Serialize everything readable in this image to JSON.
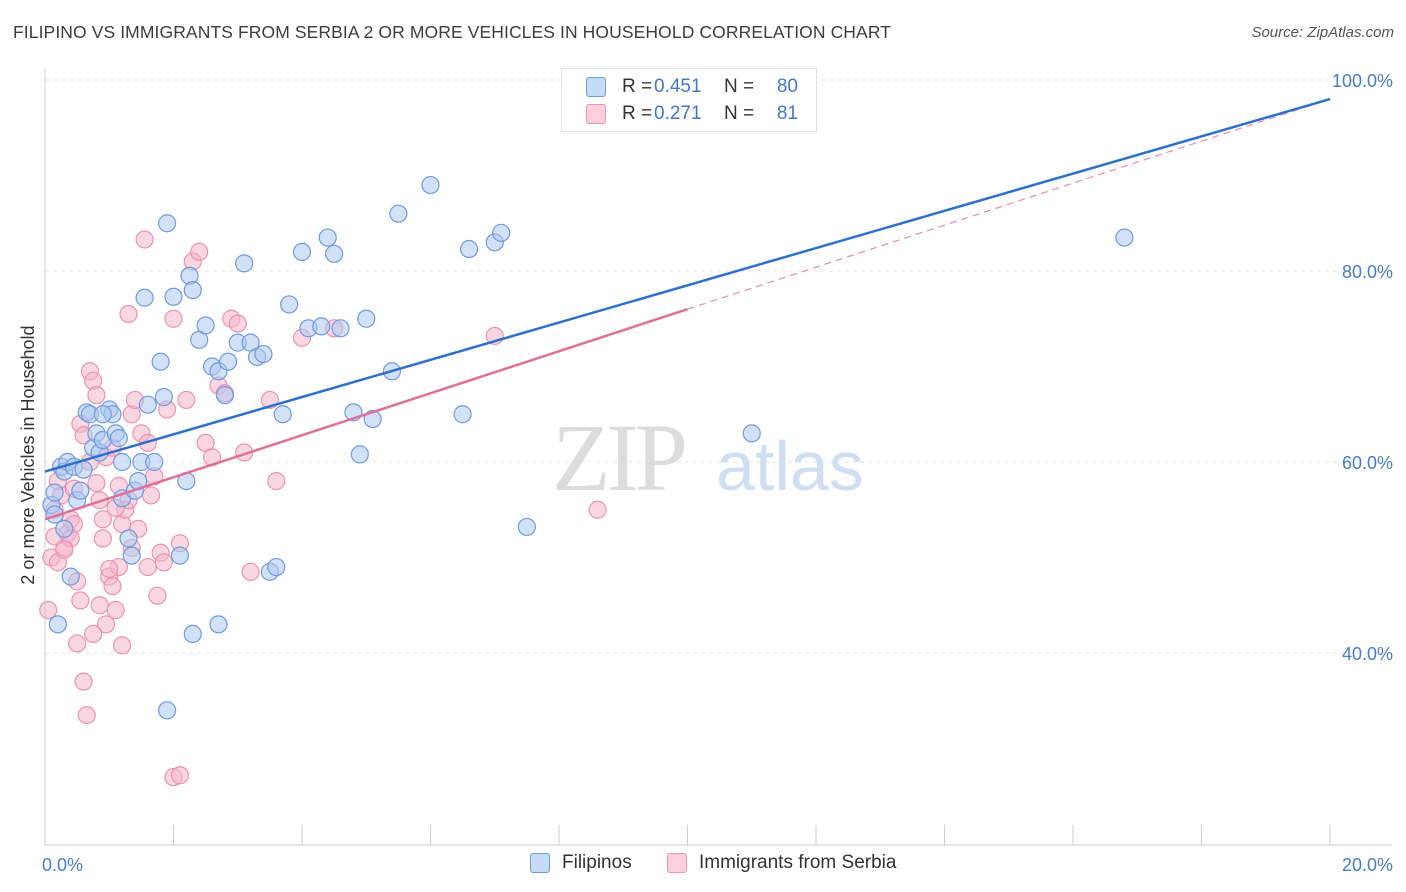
{
  "title": "FILIPINO VS IMMIGRANTS FROM SERBIA 2 OR MORE VEHICLES IN HOUSEHOLD CORRELATION CHART",
  "source": "Source: ZipAtlas.com",
  "watermark": {
    "zip": "ZIP",
    "atlas": "atlas"
  },
  "colors": {
    "blue": "#4477cc",
    "blue_fill": "#aec9ef",
    "blue_line": "#2f6fce",
    "pink": "#e05a8a",
    "pink_fill": "#f4b6cb",
    "pink_line": "#e0709a",
    "axis_label": "#4a7ccc",
    "grid": "#e6e6e6"
  },
  "legend": {
    "rows": [
      {
        "r_label": "R =",
        "r_value": "0.451",
        "n_label": "N =",
        "n_value": "80"
      },
      {
        "r_label": "R =",
        "r_value": "0.271",
        "n_label": "N =",
        "n_value": "81"
      }
    ]
  },
  "bottom_legend": [
    "Filipinos",
    "Immigrants from Serbia"
  ],
  "chart_data": {
    "type": "scatter",
    "title": "FILIPINO VS IMMIGRANTS FROM SERBIA 2 OR MORE VEHICLES IN HOUSEHOLD CORRELATION CHART",
    "xlabel": "",
    "ylabel": "2 or more Vehicles in Household",
    "xlim": [
      0,
      20
    ],
    "ylim": [
      20,
      100
    ],
    "x_tick_labels": [
      "0.0%",
      "20.0%"
    ],
    "y_ticks": [
      40,
      60,
      80,
      100
    ],
    "y_tick_labels": [
      "40.0%",
      "60.0%",
      "80.0%",
      "100.0%"
    ],
    "grid": true,
    "legend_position": "top-center",
    "series": [
      {
        "name": "Filipinos",
        "color": "#4477cc",
        "trend": {
          "x": [
            0,
            20
          ],
          "y": [
            59.0,
            98.0
          ],
          "style": "solid"
        },
        "points": [
          [
            0.1,
            55.5
          ],
          [
            0.15,
            54.5
          ],
          [
            0.2,
            43.0
          ],
          [
            0.25,
            59.5
          ],
          [
            0.3,
            59.0
          ],
          [
            0.35,
            60.0
          ],
          [
            0.4,
            48.0
          ],
          [
            0.45,
            59.5
          ],
          [
            0.5,
            56.0
          ],
          [
            0.55,
            57.0
          ],
          [
            0.6,
            59.2
          ],
          [
            0.65,
            65.2
          ],
          [
            0.7,
            65.0
          ],
          [
            0.75,
            61.5
          ],
          [
            0.8,
            63.0
          ],
          [
            0.85,
            61.0
          ],
          [
            0.9,
            62.3
          ],
          [
            1.0,
            65.5
          ],
          [
            1.05,
            65.0
          ],
          [
            1.1,
            63.0
          ],
          [
            1.15,
            62.5
          ],
          [
            1.2,
            56.2
          ],
          [
            1.3,
            52.0
          ],
          [
            1.35,
            50.2
          ],
          [
            1.4,
            57.0
          ],
          [
            1.45,
            58.0
          ],
          [
            1.5,
            60.0
          ],
          [
            1.55,
            77.2
          ],
          [
            1.6,
            66.0
          ],
          [
            1.7,
            60.0
          ],
          [
            1.8,
            70.5
          ],
          [
            1.85,
            66.8
          ],
          [
            1.9,
            85.0
          ],
          [
            2.0,
            77.3
          ],
          [
            2.1,
            50.2
          ],
          [
            2.2,
            58.0
          ],
          [
            2.25,
            79.5
          ],
          [
            2.3,
            78.0
          ],
          [
            2.4,
            72.8
          ],
          [
            2.5,
            74.3
          ],
          [
            2.6,
            70.0
          ],
          [
            2.7,
            69.5
          ],
          [
            2.8,
            67.0
          ],
          [
            2.85,
            70.5
          ],
          [
            3.0,
            72.5
          ],
          [
            3.1,
            80.8
          ],
          [
            3.2,
            72.5
          ],
          [
            3.3,
            71.0
          ],
          [
            3.4,
            71.3
          ],
          [
            3.5,
            48.5
          ],
          [
            3.6,
            49.0
          ],
          [
            3.7,
            65.0
          ],
          [
            3.8,
            76.5
          ],
          [
            4.0,
            82.0
          ],
          [
            4.1,
            74.0
          ],
          [
            4.3,
            74.2
          ],
          [
            4.4,
            83.5
          ],
          [
            4.5,
            81.8
          ],
          [
            4.6,
            74.0
          ],
          [
            4.8,
            65.2
          ],
          [
            4.9,
            60.8
          ],
          [
            5.0,
            75.0
          ],
          [
            5.1,
            64.5
          ],
          [
            5.4,
            69.5
          ],
          [
            5.5,
            86.0
          ],
          [
            6.0,
            89.0
          ],
          [
            6.5,
            65.0
          ],
          [
            6.6,
            82.3
          ],
          [
            7.0,
            83.0
          ],
          [
            7.1,
            84.0
          ],
          [
            7.5,
            53.2
          ],
          [
            11.0,
            63.0
          ],
          [
            16.8,
            83.5
          ],
          [
            1.9,
            34.0
          ],
          [
            2.3,
            42.0
          ],
          [
            2.7,
            43.0
          ],
          [
            1.2,
            60.0
          ],
          [
            0.9,
            65.0
          ],
          [
            0.3,
            53.0
          ],
          [
            0.15,
            56.8
          ]
        ]
      },
      {
        "name": "Immigrants from Serbia",
        "color": "#e05a8a",
        "trend": {
          "x": [
            0,
            10
          ],
          "y": [
            54.0,
            76.0
          ],
          "style": "solid",
          "dashed_extension": {
            "x": [
              10,
              20
            ],
            "y": [
              76.0,
              98.0
            ]
          }
        },
        "points": [
          [
            0.05,
            44.5
          ],
          [
            0.1,
            50.0
          ],
          [
            0.15,
            55.0
          ],
          [
            0.2,
            49.5
          ],
          [
            0.25,
            56.5
          ],
          [
            0.3,
            51.0
          ],
          [
            0.35,
            52.5
          ],
          [
            0.4,
            54.0
          ],
          [
            0.45,
            53.5
          ],
          [
            0.5,
            41.0
          ],
          [
            0.55,
            45.5
          ],
          [
            0.6,
            37.0
          ],
          [
            0.65,
            33.5
          ],
          [
            0.7,
            69.5
          ],
          [
            0.75,
            68.5
          ],
          [
            0.8,
            67.0
          ],
          [
            0.85,
            56.0
          ],
          [
            0.9,
            54.0
          ],
          [
            0.95,
            43.0
          ],
          [
            1.0,
            48.0
          ],
          [
            1.05,
            47.0
          ],
          [
            1.1,
            44.5
          ],
          [
            1.15,
            49.0
          ],
          [
            1.2,
            53.5
          ],
          [
            1.25,
            55.0
          ],
          [
            1.3,
            75.5
          ],
          [
            1.35,
            65.0
          ],
          [
            1.4,
            66.5
          ],
          [
            1.5,
            63.0
          ],
          [
            1.55,
            83.3
          ],
          [
            1.6,
            62.0
          ],
          [
            1.65,
            56.5
          ],
          [
            1.7,
            58.5
          ],
          [
            1.8,
            50.5
          ],
          [
            1.85,
            49.5
          ],
          [
            1.9,
            65.5
          ],
          [
            2.0,
            75.0
          ],
          [
            2.1,
            51.5
          ],
          [
            2.2,
            66.5
          ],
          [
            2.3,
            81.0
          ],
          [
            2.4,
            82.0
          ],
          [
            2.5,
            62.0
          ],
          [
            2.6,
            60.5
          ],
          [
            2.7,
            68.0
          ],
          [
            2.8,
            67.2
          ],
          [
            2.9,
            75.0
          ],
          [
            3.0,
            74.5
          ],
          [
            3.1,
            61.0
          ],
          [
            3.2,
            48.5
          ],
          [
            3.5,
            66.5
          ],
          [
            3.6,
            58.0
          ],
          [
            4.0,
            73.0
          ],
          [
            4.5,
            74.0
          ],
          [
            7.0,
            73.2
          ],
          [
            8.6,
            55.0
          ],
          [
            0.2,
            58.0
          ],
          [
            0.4,
            52.0
          ],
          [
            0.55,
            64.0
          ],
          [
            0.7,
            60.0
          ],
          [
            0.95,
            60.5
          ],
          [
            1.05,
            61.5
          ],
          [
            1.15,
            57.5
          ],
          [
            1.3,
            56.0
          ],
          [
            1.45,
            53.0
          ],
          [
            1.6,
            49.0
          ],
          [
            1.75,
            46.0
          ],
          [
            2.0,
            27.0
          ],
          [
            2.1,
            27.2
          ],
          [
            1.2,
            40.8
          ],
          [
            1.0,
            48.8
          ],
          [
            0.6,
            62.8
          ],
          [
            0.8,
            57.8
          ],
          [
            0.3,
            50.8
          ],
          [
            0.5,
            47.5
          ],
          [
            0.9,
            52.0
          ],
          [
            1.1,
            55.2
          ],
          [
            1.35,
            51.0
          ],
          [
            0.75,
            42.0
          ],
          [
            0.85,
            45.0
          ],
          [
            0.45,
            57.2
          ],
          [
            0.15,
            52.2
          ]
        ]
      }
    ]
  }
}
